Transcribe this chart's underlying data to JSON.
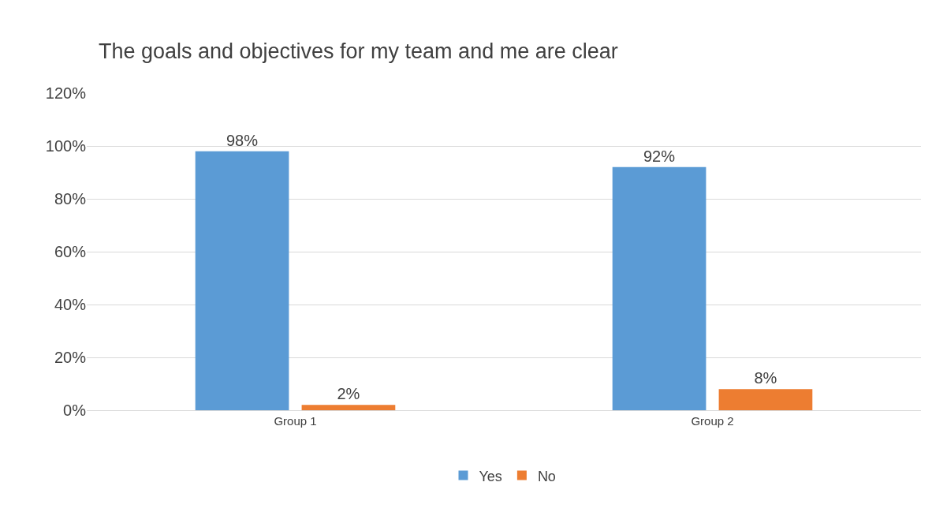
{
  "chart_data": {
    "type": "bar",
    "title": "The goals and objectives for my team and me are clear",
    "categories": [
      "Group 1",
      "Group 2"
    ],
    "series": [
      {
        "name": "Yes",
        "color": "#5b9bd5",
        "values": [
          98,
          92
        ],
        "value_labels": [
          "98%",
          "92%"
        ]
      },
      {
        "name": "No",
        "color": "#ed7d31",
        "values": [
          2,
          8
        ],
        "value_labels": [
          "2%",
          "8%"
        ]
      }
    ],
    "ylim": [
      0,
      120
    ],
    "yticks": [
      {
        "value": 0,
        "label": "0%"
      },
      {
        "value": 20,
        "label": "20%"
      },
      {
        "value": 40,
        "label": "40%"
      },
      {
        "value": 60,
        "label": "60%"
      },
      {
        "value": 80,
        "label": "80%"
      },
      {
        "value": 100,
        "label": "100%"
      },
      {
        "value": 120,
        "label": "120%"
      }
    ],
    "grid": "y",
    "legend": "bottom"
  }
}
